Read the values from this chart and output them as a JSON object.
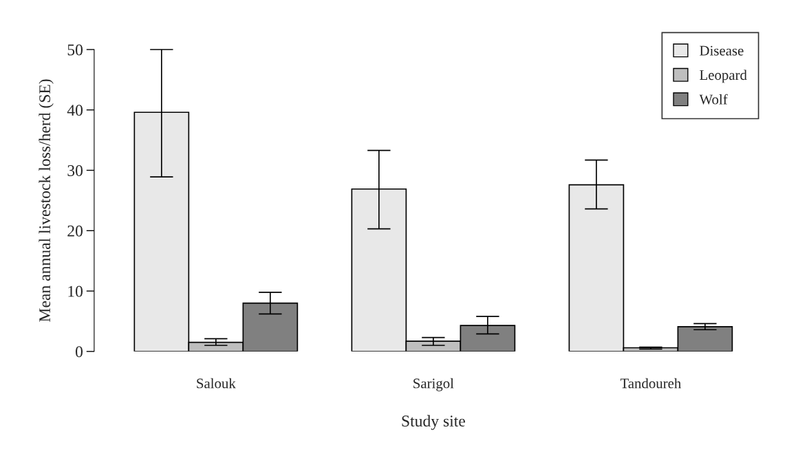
{
  "chart_data": {
    "type": "bar",
    "xlabel": "Study site",
    "ylabel": "Mean annual livestock loss/herd (SE)",
    "categories": [
      "Salouk",
      "Sarigol",
      "Tandoureh"
    ],
    "series": [
      {
        "name": "Disease",
        "color": "#e8e8e8",
        "values": [
          39.6,
          26.9,
          27.6
        ],
        "errors": [
          [
            28.9,
            50
          ],
          [
            20.3,
            33.3
          ],
          [
            23.6,
            31.7
          ]
        ]
      },
      {
        "name": "Leopard",
        "color": "#bebebe",
        "values": [
          1.5,
          1.7,
          0.6
        ],
        "errors": [
          [
            1.0,
            2.1
          ],
          [
            1.0,
            2.3
          ],
          [
            0.4,
            0.7
          ]
        ]
      },
      {
        "name": "Wolf",
        "color": "#808080",
        "values": [
          8.0,
          4.3,
          4.1
        ],
        "errors": [
          [
            6.2,
            9.8
          ],
          [
            2.9,
            5.8
          ],
          [
            3.6,
            4.6
          ]
        ]
      }
    ],
    "ylim": [
      0,
      50
    ],
    "yticks": [
      0,
      10,
      20,
      30,
      40,
      50
    ],
    "grid": false,
    "legend": "top right"
  }
}
